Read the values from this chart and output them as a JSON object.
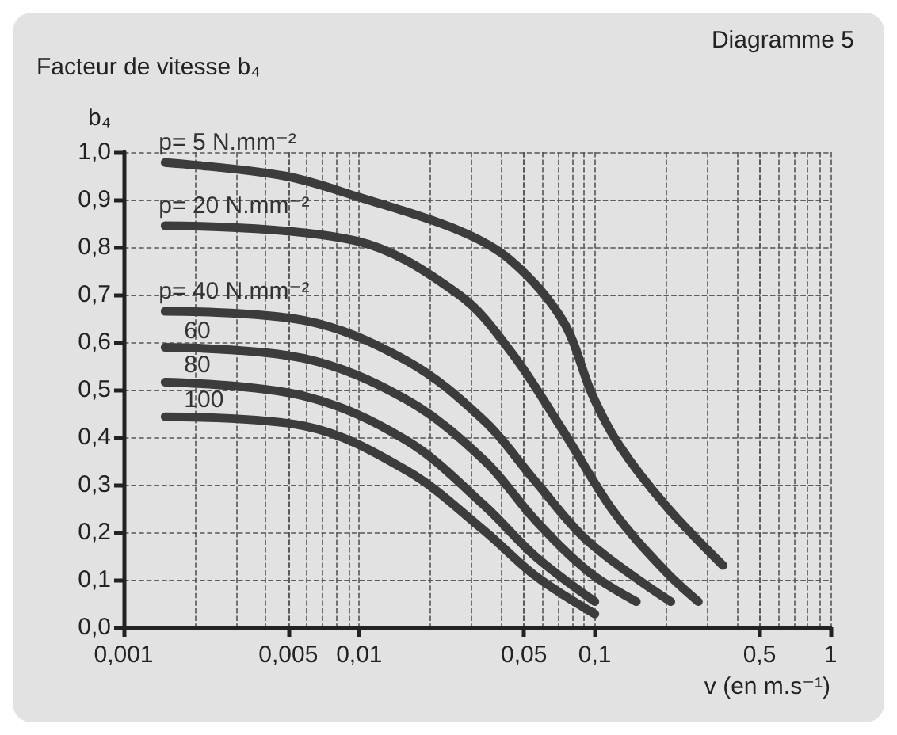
{
  "chart_data": {
    "type": "line",
    "title": "Facteur de vitesse b₄",
    "ylabel": "b₄",
    "xlabel": "v (en m.s⁻¹)",
    "annotations": [
      "Diagramme 5"
    ],
    "log": "x",
    "grid": true,
    "legend": false,
    "marker": "none",
    "line_style": "solid",
    "xlim": [
      0.001,
      1
    ],
    "ylim": [
      0,
      1
    ],
    "xticks": [
      {
        "value": 0.001,
        "label": "0,001"
      },
      {
        "value": 0.005,
        "label": "0,005"
      },
      {
        "value": 0.01,
        "label": "0,01"
      },
      {
        "value": 0.05,
        "label": "0,05"
      },
      {
        "value": 0.1,
        "label": "0,1"
      },
      {
        "value": 0.5,
        "label": "0,5"
      },
      {
        "value": 1,
        "label": "1"
      }
    ],
    "yticks": [
      {
        "value": 0,
        "label": "0,0"
      },
      {
        "value": 0.1,
        "label": "0,1"
      },
      {
        "value": 0.2,
        "label": "0,2"
      },
      {
        "value": 0.3,
        "label": "0,3"
      },
      {
        "value": 0.4,
        "label": "0,4"
      },
      {
        "value": 0.5,
        "label": "0,5"
      },
      {
        "value": 0.6,
        "label": "0,6"
      },
      {
        "value": 0.7,
        "label": "0,7"
      },
      {
        "value": 0.8,
        "label": "0,8"
      },
      {
        "value": 0.9,
        "label": "0,9"
      },
      {
        "value": 1,
        "label": "1,0"
      }
    ],
    "series": [
      {
        "name": "p= 5 N.mm⁻²",
        "color": "#3c3c3c",
        "x": [
          0.0015,
          0.0048,
          0.01,
          0.0265,
          0.044,
          0.073,
          0.098,
          0.127,
          0.2,
          0.35
        ],
        "values": [
          0.978,
          0.95,
          0.905,
          0.835,
          0.772,
          0.646,
          0.487,
          0.383,
          0.256,
          0.13
        ]
      },
      {
        "name": "p= 20 N.mm⁻²",
        "color": "#3c3c3c",
        "x": [
          0.0015,
          0.0097,
          0.0265,
          0.044,
          0.073,
          0.12,
          0.2,
          0.275
        ],
        "values": [
          0.845,
          0.813,
          0.7,
          0.58,
          0.415,
          0.244,
          0.117,
          0.054
        ]
      },
      {
        "name": "p= 40 N.mm⁻²",
        "color": "#3c3c3c",
        "x": [
          0.0015,
          0.0058,
          0.016,
          0.034,
          0.056,
          0.094,
          0.21
        ],
        "values": [
          0.665,
          0.646,
          0.56,
          0.434,
          0.307,
          0.18,
          0.054
        ]
      },
      {
        "name": "60",
        "color": "#3c3c3c",
        "x": [
          0.0015,
          0.0058,
          0.016,
          0.034,
          0.056,
          0.094,
          0.15
        ],
        "values": [
          0.589,
          0.566,
          0.478,
          0.351,
          0.225,
          0.117,
          0.054
        ]
      },
      {
        "name": "80",
        "color": "#3c3c3c",
        "x": [
          0.0015,
          0.0058,
          0.016,
          0.034,
          0.056,
          0.1
        ],
        "values": [
          0.516,
          0.487,
          0.392,
          0.256,
          0.149,
          0.054
        ]
      },
      {
        "name": "100",
        "color": "#3c3c3c",
        "x": [
          0.0015,
          0.0058,
          0.016,
          0.034,
          0.056,
          0.1
        ],
        "values": [
          0.443,
          0.424,
          0.329,
          0.203,
          0.108,
          0.028
        ]
      }
    ]
  }
}
